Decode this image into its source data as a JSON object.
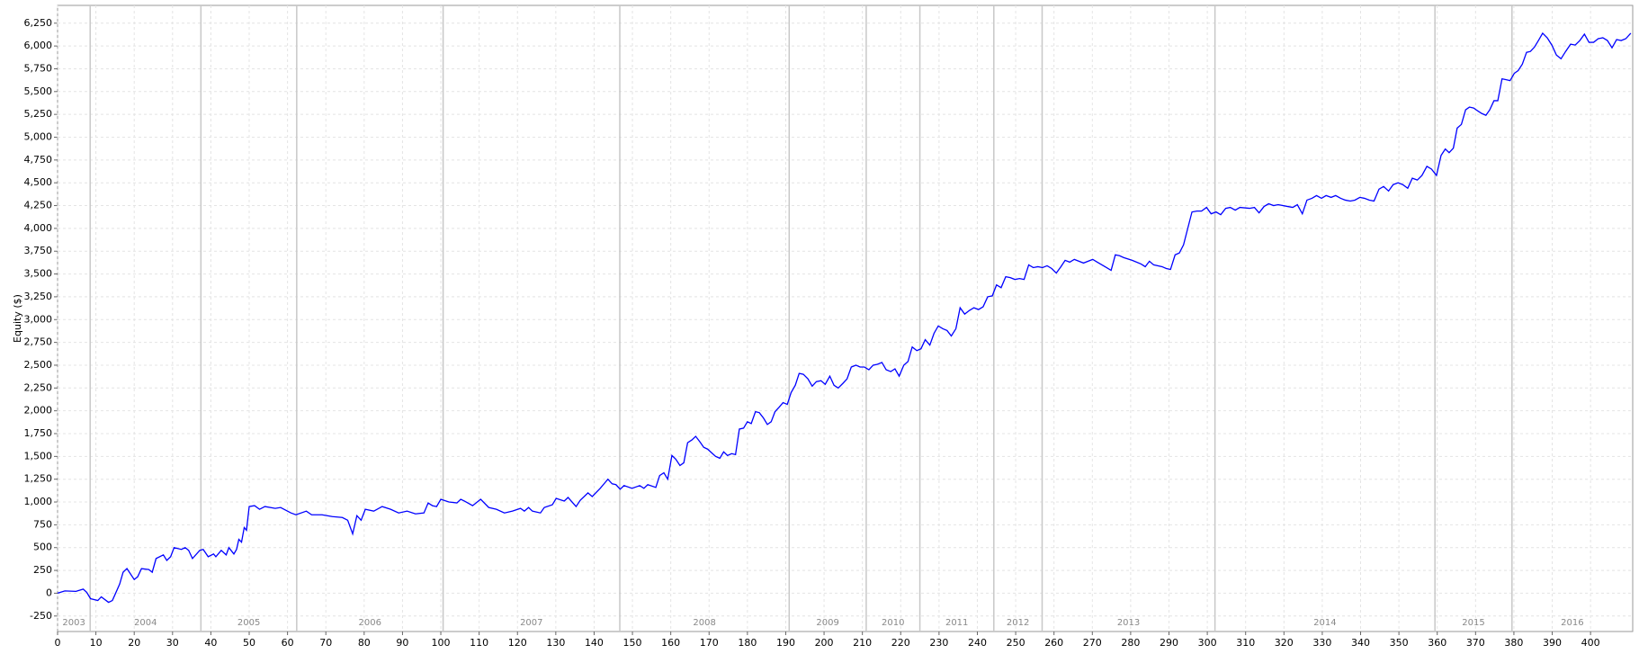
{
  "chart_data": {
    "type": "line",
    "ylabel": "Equity ($)",
    "color": "#0000ff",
    "grid": true,
    "xlim": [
      0,
      411
    ],
    "ylim": [
      -420,
      6445
    ],
    "xticks": [
      0,
      10,
      20,
      30,
      40,
      50,
      60,
      70,
      80,
      90,
      100,
      110,
      120,
      130,
      140,
      150,
      160,
      170,
      180,
      190,
      200,
      210,
      220,
      230,
      240,
      250,
      260,
      270,
      280,
      290,
      300,
      310,
      320,
      330,
      340,
      350,
      360,
      370,
      380,
      390,
      400
    ],
    "yticks": [
      -250,
      0,
      250,
      500,
      750,
      {
        "value": 1000,
        "label": "1,000"
      },
      {
        "value": 1250,
        "label": "1,250"
      },
      {
        "value": 1500,
        "label": "1,500"
      },
      {
        "value": 1750,
        "label": "1,750"
      },
      {
        "value": 2000,
        "label": "2,000"
      },
      {
        "value": 2250,
        "label": "2,250"
      },
      {
        "value": 2500,
        "label": "2,500"
      },
      {
        "value": 2750,
        "label": "2,750"
      },
      {
        "value": 3000,
        "label": "3,000"
      },
      {
        "value": 3250,
        "label": "3,250"
      },
      {
        "value": 3500,
        "label": "3,500"
      },
      {
        "value": 3750,
        "label": "3,750"
      },
      {
        "value": 4000,
        "label": "4,000"
      },
      {
        "value": 4250,
        "label": "4,250"
      },
      {
        "value": 4500,
        "label": "4,500"
      },
      {
        "value": 4750,
        "label": "4,750"
      },
      {
        "value": 5000,
        "label": "5,000"
      },
      {
        "value": 5250,
        "label": "5,250"
      },
      {
        "value": 5500,
        "label": "5,500"
      },
      {
        "value": 5750,
        "label": "5,750"
      },
      {
        "value": 6000,
        "label": "6,000"
      },
      {
        "value": 6250,
        "label": "6,250"
      }
    ],
    "year_bands": [
      {
        "label": "2003",
        "start": 0,
        "end": 8.5
      },
      {
        "label": "2004",
        "start": 8.5,
        "end": 37.4
      },
      {
        "label": "2005",
        "start": 37.4,
        "end": 62.4
      },
      {
        "label": "2006",
        "start": 62.4,
        "end": 100.6
      },
      {
        "label": "2007",
        "start": 100.6,
        "end": 146.7
      },
      {
        "label": "2008",
        "start": 146.7,
        "end": 190.9
      },
      {
        "label": "2009",
        "start": 190.9,
        "end": 211
      },
      {
        "label": "2010",
        "start": 211,
        "end": 225
      },
      {
        "label": "2011",
        "start": 225,
        "end": 244.3
      },
      {
        "label": "2012",
        "start": 244.3,
        "end": 256.9
      },
      {
        "label": "2013",
        "start": 256.9,
        "end": 302
      },
      {
        "label": "2014",
        "start": 302,
        "end": 359.4
      },
      {
        "label": "2015",
        "start": 359.4,
        "end": 379.5
      },
      {
        "label": "2016",
        "start": 379.5,
        "end": 411
      }
    ],
    "x": [
      0,
      1.9,
      4.8,
      6.7,
      7.6,
      8.6,
      10.5,
      11.4,
      13.3,
      14.3,
      16.2,
      17.1,
      18.1,
      20,
      20.9,
      21.9,
      23.8,
      24.7,
      25.7,
      27.6,
      28.5,
      29.5,
      30.4,
      32.3,
      33.3,
      34.2,
      35.2,
      37.1,
      38,
      39.3,
      40.7,
      41.3,
      42.7,
      44,
      44.7,
      46,
      46.7,
      47.3,
      48,
      48.7,
      49.3,
      50,
      51.4,
      52.7,
      54.1,
      56.8,
      58.2,
      60.9,
      62.2,
      64.9,
      66.3,
      69,
      71.7,
      74.3,
      75.7,
      77,
      78.1,
      79.2,
      80.3,
      82.5,
      84.7,
      86.9,
      89,
      91.2,
      93.4,
      95.6,
      96.7,
      97.8,
      98.9,
      100,
      102.1,
      104.2,
      105.2,
      106.2,
      108.3,
      110.4,
      112.5,
      114.5,
      116.6,
      118.7,
      120.8,
      121.8,
      122.9,
      123.9,
      126,
      127,
      129.1,
      130.1,
      132.2,
      133.2,
      135.3,
      136.4,
      138.4,
      139.5,
      141.6,
      142.6,
      143.6,
      144.7,
      145.7,
      146.8,
      147.8,
      149.9,
      151.9,
      153,
      154,
      156.1,
      157.1,
      158.2,
      159.2,
      160.3,
      161.3,
      162.4,
      163.4,
      164.4,
      165.5,
      166.5,
      167.6,
      168.6,
      169.6,
      171.7,
      172.8,
      173.8,
      174.8,
      175.9,
      176.9,
      177.9,
      179,
      180,
      181,
      182.1,
      183.1,
      184.2,
      185.2,
      186.2,
      187.2,
      188.3,
      189.3,
      190.4,
      191.4,
      192.5,
      193.5,
      194.6,
      195.8,
      196.9,
      198,
      199.2,
      200.3,
      201.5,
      202.6,
      203.7,
      204.9,
      206,
      207.1,
      208.3,
      209.4,
      210.5,
      211.7,
      212.8,
      213.9,
      215.1,
      216.2,
      217.4,
      218.5,
      219.6,
      220.8,
      221.9,
      223,
      224.2,
      225.3,
      226.4,
      227.6,
      228.7,
      229.8,
      231,
      232.1,
      233.2,
      234.4,
      235.5,
      236.7,
      237.9,
      239.1,
      240.3,
      241.5,
      242.7,
      243.9,
      245,
      246.2,
      247.4,
      248.6,
      249.8,
      251,
      252.2,
      253.4,
      254.6,
      255.8,
      257,
      258.2,
      259.4,
      260.6,
      261.8,
      262.9,
      264.1,
      265.3,
      266.5,
      267.7,
      268.9,
      270.1,
      271.3,
      272.5,
      273.7,
      274.9,
      276,
      277.1,
      278.2,
      280.4,
      282.7,
      283.8,
      284.9,
      286,
      288.2,
      289.3,
      290.4,
      291.6,
      292.7,
      293.8,
      294.9,
      296,
      297.3,
      298.5,
      299.8,
      301,
      302.3,
      303.5,
      304.8,
      306,
      307.3,
      308.5,
      311,
      312.3,
      313.5,
      314.8,
      316,
      317.3,
      318.5,
      321,
      322.3,
      323.5,
      324.8,
      326,
      327.3,
      328.5,
      329.8,
      331,
      332.3,
      333.5,
      334.8,
      336,
      337.3,
      338.5,
      339.8,
      341,
      342.3,
      343.5,
      344.8,
      346,
      347.3,
      348.5,
      349.8,
      351,
      352.3,
      353.5,
      354.8,
      356,
      357.3,
      358.5,
      359.8,
      361,
      362.1,
      363.1,
      364.2,
      365.2,
      366.3,
      367.4,
      368.4,
      369.5,
      370.5,
      371.6,
      372.7,
      373.7,
      374.8,
      375.8,
      376.9,
      378,
      379,
      380.1,
      381.1,
      382.2,
      383.3,
      384.3,
      385.4,
      386.4,
      387.5,
      388.7,
      389.9,
      391.1,
      392.3,
      393.5,
      394.8,
      396,
      397.2,
      398.4,
      399.6,
      400.8,
      402,
      403.2,
      404.4,
      405.6,
      406.8,
      408,
      409.2,
      410.5
    ],
    "values": [
      0,
      25,
      20,
      45,
      10,
      -60,
      -80,
      -40,
      -100,
      -80,
      100,
      230,
      270,
      150,
      180,
      270,
      260,
      230,
      380,
      420,
      360,
      400,
      500,
      480,
      500,
      470,
      380,
      470,
      480,
      400,
      430,
      400,
      470,
      420,
      500,
      430,
      480,
      590,
      560,
      720,
      690,
      950,
      960,
      920,
      950,
      930,
      940,
      880,
      860,
      900,
      860,
      860,
      840,
      830,
      800,
      650,
      850,
      800,
      920,
      900,
      950,
      920,
      880,
      900,
      870,
      880,
      990,
      960,
      950,
      1030,
      1000,
      990,
      1030,
      1010,
      960,
      1030,
      940,
      920,
      880,
      900,
      930,
      900,
      940,
      900,
      880,
      940,
      970,
      1040,
      1010,
      1050,
      950,
      1020,
      1100,
      1060,
      1150,
      1200,
      1250,
      1200,
      1190,
      1140,
      1180,
      1150,
      1180,
      1150,
      1190,
      1160,
      1290,
      1320,
      1250,
      1510,
      1470,
      1400,
      1430,
      1650,
      1680,
      1720,
      1660,
      1600,
      1580,
      1500,
      1480,
      1550,
      1510,
      1530,
      1520,
      1800,
      1810,
      1880,
      1860,
      1990,
      1980,
      1920,
      1850,
      1880,
      1990,
      2040,
      2090,
      2070,
      2200,
      2280,
      2410,
      2400,
      2350,
      2270,
      2320,
      2330,
      2290,
      2380,
      2280,
      2250,
      2300,
      2350,
      2480,
      2500,
      2480,
      2480,
      2450,
      2500,
      2510,
      2530,
      2450,
      2430,
      2460,
      2380,
      2500,
      2540,
      2700,
      2660,
      2680,
      2780,
      2720,
      2850,
      2930,
      2900,
      2880,
      2820,
      2900,
      3130,
      3060,
      3100,
      3130,
      3110,
      3140,
      3250,
      3260,
      3380,
      3350,
      3470,
      3460,
      3440,
      3450,
      3440,
      3600,
      3570,
      3580,
      3570,
      3590,
      3560,
      3510,
      3580,
      3650,
      3630,
      3660,
      3640,
      3620,
      3640,
      3660,
      3630,
      3600,
      3570,
      3540,
      3710,
      3700,
      3680,
      3650,
      3610,
      3580,
      3640,
      3600,
      3580,
      3560,
      3550,
      3710,
      3730,
      3820,
      4000,
      4180,
      4190,
      4190,
      4230,
      4160,
      4180,
      4150,
      4220,
      4230,
      4200,
      4230,
      4220,
      4230,
      4170,
      4240,
      4270,
      4250,
      4260,
      4240,
      4230,
      4260,
      4160,
      4310,
      4330,
      4360,
      4330,
      4360,
      4340,
      4360,
      4330,
      4310,
      4300,
      4310,
      4340,
      4330,
      4310,
      4300,
      4430,
      4460,
      4410,
      4480,
      4500,
      4480,
      4440,
      4550,
      4530,
      4580,
      4680,
      4650,
      4580,
      4800,
      4870,
      4830,
      4880,
      5100,
      5140,
      5300,
      5330,
      5320,
      5290,
      5260,
      5240,
      5300,
      5400,
      5400,
      5640,
      5630,
      5620,
      5700,
      5730,
      5800,
      5930,
      5940,
      5990,
      6060,
      6140,
      6090,
      6010,
      5900,
      5860,
      5940,
      6020,
      6010,
      6060,
      6130,
      6040,
      6040,
      6080,
      6090,
      6060,
      5980,
      6070,
      6060,
      6080,
      6140
    ]
  }
}
